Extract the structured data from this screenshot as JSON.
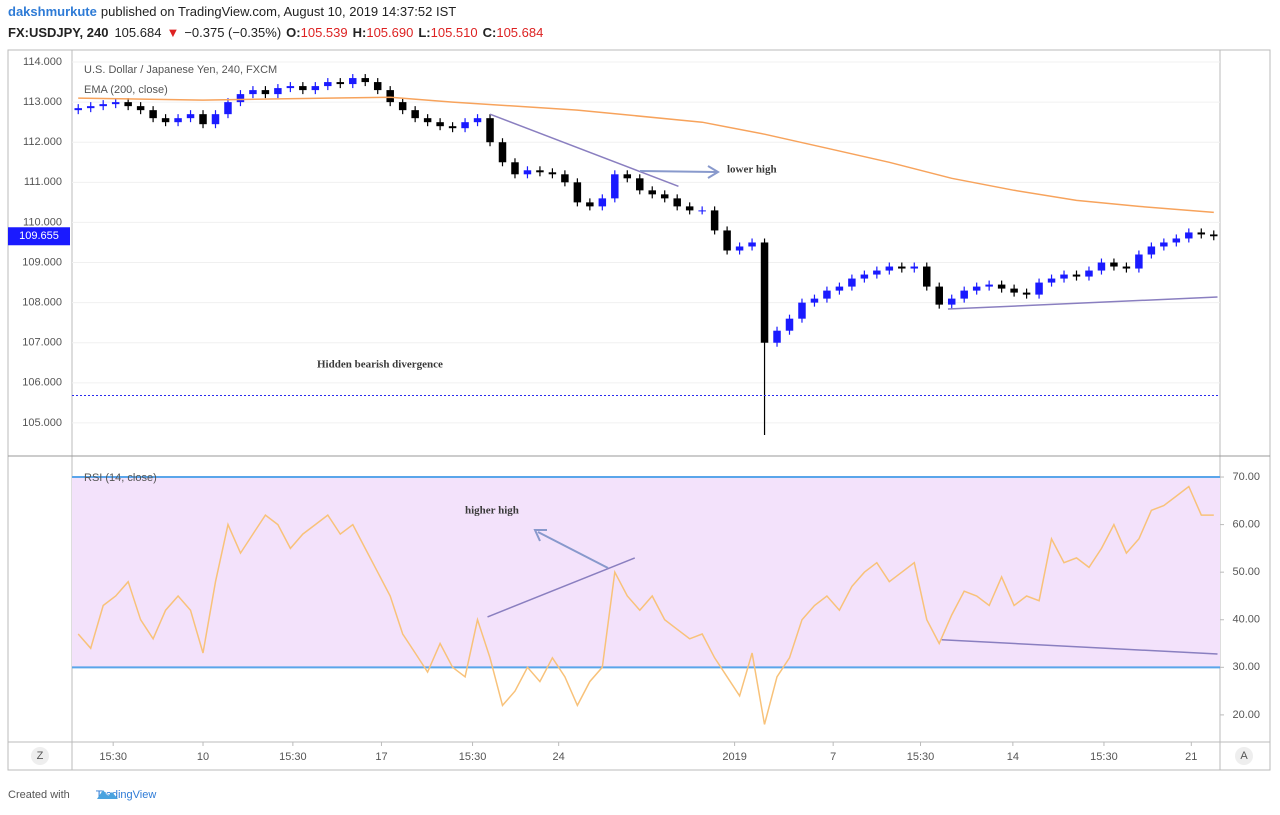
{
  "header": {
    "author": "dakshmurkute",
    "published": "published on TradingView.com, August 10, 2019 14:37:52 IST",
    "symbol": "FX:USDJPY, 240",
    "last": "105.684",
    "change_arrow": "▼",
    "change": "−0.375 (−0.35%)",
    "ohlc": [
      {
        "label": "O:",
        "value": "105.539"
      },
      {
        "label": "H:",
        "value": "105.690"
      },
      {
        "label": "L:",
        "value": "105.510"
      },
      {
        "label": "C:",
        "value": "105.684"
      }
    ]
  },
  "chart_data": [
    {
      "type": "candlestick",
      "legend": [
        "U.S. Dollar / Japanese Yen, 240, FXCM",
        "EMA (200, close)"
      ],
      "up_color": "#1a1aff",
      "down_color": "#000000",
      "ema_color": "#f7a35c",
      "open": [
        112.8,
        112.85,
        112.9,
        112.95,
        113.0,
        112.9,
        112.8,
        112.6,
        112.5,
        112.6,
        112.7,
        112.45,
        112.7,
        113.0,
        113.2,
        113.3,
        113.2,
        113.35,
        113.4,
        113.3,
        113.4,
        113.5,
        113.45,
        113.6,
        113.5,
        113.3,
        113.0,
        112.8,
        112.6,
        112.5,
        112.4,
        112.35,
        112.5,
        112.6,
        112.0,
        111.5,
        111.2,
        111.3,
        111.25,
        111.2,
        111.0,
        110.5,
        110.4,
        110.6,
        111.2,
        111.1,
        110.8,
        110.7,
        110.6,
        110.4,
        110.3,
        110.3,
        109.8,
        109.3,
        109.4,
        109.5,
        107.0,
        107.3,
        107.6,
        108.0,
        108.1,
        108.3,
        108.4,
        108.6,
        108.7,
        108.8,
        108.9,
        108.85,
        108.9,
        108.4,
        107.95,
        108.1,
        108.3,
        108.4,
        108.45,
        108.35,
        108.25,
        108.2,
        108.5,
        108.6,
        108.7,
        108.65,
        108.8,
        109.0,
        108.9,
        108.85,
        109.2,
        109.4,
        109.5,
        109.6,
        109.75,
        109.7
      ],
      "high": [
        112.95,
        113.0,
        113.05,
        113.1,
        113.1,
        113.0,
        112.9,
        112.7,
        112.7,
        112.8,
        112.8,
        112.8,
        113.1,
        113.3,
        113.4,
        113.4,
        113.45,
        113.5,
        113.5,
        113.5,
        113.6,
        113.6,
        113.7,
        113.7,
        113.6,
        113.4,
        113.1,
        112.9,
        112.7,
        112.6,
        112.5,
        112.6,
        112.7,
        112.7,
        112.1,
        111.6,
        111.4,
        111.4,
        111.35,
        111.3,
        111.1,
        110.6,
        110.7,
        111.3,
        111.3,
        111.2,
        110.9,
        110.8,
        110.7,
        110.5,
        110.4,
        110.4,
        109.9,
        109.5,
        109.6,
        109.6,
        107.4,
        107.7,
        108.1,
        108.2,
        108.4,
        108.5,
        108.7,
        108.8,
        108.9,
        109.0,
        109.0,
        109.0,
        109.0,
        108.5,
        108.2,
        108.4,
        108.5,
        108.55,
        108.55,
        108.45,
        108.35,
        108.6,
        108.7,
        108.8,
        108.8,
        108.9,
        109.1,
        109.1,
        109.0,
        109.3,
        109.5,
        109.6,
        109.7,
        109.85,
        109.85,
        109.8
      ],
      "low": [
        112.7,
        112.75,
        112.8,
        112.85,
        112.8,
        112.7,
        112.5,
        112.4,
        112.4,
        112.5,
        112.35,
        112.35,
        112.6,
        112.9,
        113.1,
        113.1,
        113.1,
        113.25,
        113.2,
        113.2,
        113.3,
        113.35,
        113.35,
        113.4,
        113.2,
        112.9,
        112.7,
        112.5,
        112.4,
        112.3,
        112.25,
        112.25,
        112.4,
        111.9,
        111.4,
        111.1,
        111.1,
        111.15,
        111.1,
        110.9,
        110.4,
        110.3,
        110.3,
        110.5,
        111.0,
        110.7,
        110.6,
        110.5,
        110.3,
        110.2,
        110.2,
        109.7,
        109.2,
        109.2,
        109.3,
        104.7,
        106.9,
        107.2,
        107.5,
        107.9,
        108.0,
        108.2,
        108.3,
        108.5,
        108.6,
        108.7,
        108.75,
        108.75,
        108.3,
        107.85,
        107.85,
        108.0,
        108.2,
        108.3,
        108.25,
        108.15,
        108.1,
        108.1,
        108.4,
        108.5,
        108.55,
        108.55,
        108.7,
        108.8,
        108.75,
        108.75,
        109.1,
        109.3,
        109.4,
        109.5,
        109.6,
        109.555
      ],
      "close": [
        112.85,
        112.9,
        112.95,
        113.0,
        112.9,
        112.8,
        112.6,
        112.5,
        112.6,
        112.7,
        112.45,
        112.7,
        113.0,
        113.2,
        113.3,
        113.2,
        113.35,
        113.4,
        113.3,
        113.4,
        113.5,
        113.45,
        113.6,
        113.5,
        113.3,
        113.0,
        112.8,
        112.6,
        112.5,
        112.4,
        112.35,
        112.5,
        112.6,
        112.0,
        111.5,
        111.2,
        111.3,
        111.25,
        111.2,
        111.0,
        110.5,
        110.4,
        110.6,
        111.2,
        111.1,
        110.8,
        110.7,
        110.6,
        110.4,
        110.3,
        110.3,
        109.8,
        109.3,
        109.4,
        109.5,
        107.0,
        107.3,
        107.6,
        108.0,
        108.1,
        108.3,
        108.4,
        108.6,
        108.7,
        108.8,
        108.9,
        108.85,
        108.9,
        108.4,
        107.95,
        108.1,
        108.3,
        108.4,
        108.45,
        108.35,
        108.25,
        108.2,
        108.5,
        108.6,
        108.7,
        108.65,
        108.8,
        109.0,
        108.9,
        108.85,
        109.2,
        109.4,
        109.5,
        109.6,
        109.75,
        109.7,
        109.655
      ],
      "ema": {
        "x": [
          0,
          10,
          20,
          25,
          30,
          40,
          50,
          55,
          60,
          65,
          70,
          75,
          80,
          85,
          91
        ],
        "values": [
          113.1,
          113.05,
          113.1,
          113.12,
          113.0,
          112.8,
          112.5,
          112.2,
          111.85,
          111.5,
          111.1,
          110.8,
          110.55,
          110.4,
          110.25
        ]
      },
      "last_price": 109.655,
      "price_line": 105.684,
      "trendlines": [
        {
          "x": [
            33,
            48.1
          ],
          "values": [
            112.7,
            110.9
          ]
        },
        {
          "x": [
            69.7,
            91.3
          ],
          "values": [
            107.84,
            108.14
          ]
        }
      ],
      "annotations": [
        "lower high",
        "Hidden bearish divergence"
      ],
      "xlim": [
        -0.5,
        91.5
      ],
      "ylim": [
        104.2,
        114.3
      ],
      "yticks": [
        {
          "value": 114,
          "label": "114.000"
        },
        {
          "value": 113,
          "label": "113.000"
        },
        {
          "value": 112,
          "label": "112.000"
        },
        {
          "value": 111,
          "label": "111.000"
        },
        {
          "value": 110,
          "label": "110.000"
        },
        {
          "value": 109,
          "label": "109.000"
        },
        {
          "value": 108,
          "label": "108.000"
        },
        {
          "value": 107,
          "label": "107.000"
        },
        {
          "value": 106,
          "label": "106.000"
        },
        {
          "value": 105,
          "label": "105.000"
        }
      ]
    },
    {
      "type": "line",
      "legend": "RSI (14, close)",
      "color": "#f8c27a",
      "band": [
        30,
        70
      ],
      "band_color": "#f3e2fb",
      "band_line_color": "#5aa5ea",
      "values": [
        37,
        34,
        43,
        45,
        48,
        40,
        36,
        42,
        45,
        42,
        33,
        48,
        60,
        54,
        58,
        62,
        60,
        55,
        58,
        60,
        62,
        58,
        60,
        55,
        50,
        45,
        37,
        33,
        29,
        35,
        30,
        28,
        40,
        32,
        22,
        25,
        30,
        27,
        32,
        28,
        22,
        27,
        30,
        50,
        45,
        42,
        45,
        40,
        38,
        36,
        37,
        32,
        28,
        24,
        33,
        18,
        28,
        32,
        40,
        43,
        45,
        42,
        47,
        50,
        52,
        48,
        50,
        52,
        40,
        35,
        41,
        46,
        45,
        43,
        49,
        43,
        45,
        44,
        57,
        52,
        53,
        51,
        55,
        60,
        54,
        57,
        63,
        64,
        66,
        68,
        62,
        62
      ],
      "trendlines": [
        {
          "x": [
            32.8,
            44.6
          ],
          "values": [
            40.6,
            53.0
          ]
        },
        {
          "x": [
            69.2,
            91.3
          ],
          "values": [
            35.8,
            32.8
          ]
        }
      ],
      "annotation": "higher high",
      "xlim": [
        -0.5,
        91.5
      ],
      "ylim": [
        14.3,
        74
      ],
      "yticks": [
        {
          "value": 70,
          "label": "70.00"
        },
        {
          "value": 60,
          "label": "60.00"
        },
        {
          "value": 50,
          "label": "50.00"
        },
        {
          "value": 40,
          "label": "40.00"
        },
        {
          "value": 30,
          "label": "30.00"
        },
        {
          "value": 20,
          "label": "20.00"
        }
      ],
      "xticks": [
        {
          "value": 2.8,
          "label": "15:30"
        },
        {
          "value": 10.0,
          "label": "10"
        },
        {
          "value": 17.2,
          "label": "15:30"
        },
        {
          "value": 24.3,
          "label": "17"
        },
        {
          "value": 31.6,
          "label": "15:30"
        },
        {
          "value": 38.5,
          "label": "24"
        },
        {
          "value": 52.6,
          "label": "2019"
        },
        {
          "value": 60.5,
          "label": "7"
        },
        {
          "value": 67.5,
          "label": "15:30"
        },
        {
          "value": 74.9,
          "label": "14"
        },
        {
          "value": 82.2,
          "label": "15:30"
        },
        {
          "value": 89.2,
          "label": "21"
        }
      ]
    }
  ],
  "footer": {
    "created": "Created with",
    "brand": "TradingView"
  },
  "buttons": [
    "Z",
    "A"
  ]
}
